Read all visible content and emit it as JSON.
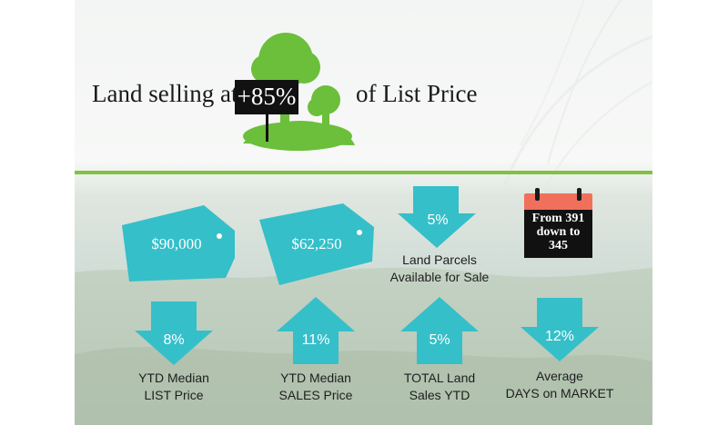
{
  "headline": {
    "prefix": "Land selling at",
    "value": "+85%",
    "suffix": "of List Price"
  },
  "tags": [
    {
      "value": "$90,000"
    },
    {
      "value": "$62,250"
    }
  ],
  "stats": [
    {
      "percent": "8%",
      "direction": "down",
      "label_line1": "YTD Median",
      "label_line2": "LIST Price"
    },
    {
      "percent": "11%",
      "direction": "up",
      "label_line1": "YTD Median",
      "label_line2": "SALES Price"
    },
    {
      "percent": "5%",
      "direction": "up",
      "label_line1": "TOTAL Land",
      "label_line2": "Sales YTD"
    },
    {
      "percent": "12%",
      "direction": "down",
      "label_line1": "Average",
      "label_line2": "DAYS on MARKET"
    }
  ],
  "parcels": {
    "percent": "5%",
    "direction": "down",
    "label_line1": "Land Parcels",
    "label_line2": "Available for Sale"
  },
  "calendar": {
    "line1": "From 391",
    "line2": "down to",
    "line3": "345"
  },
  "colors": {
    "accent_teal": "#35bfc9",
    "divider_green": "#7ec242",
    "tree_green": "#6bbf3a",
    "calendar_red": "#f0705c"
  }
}
